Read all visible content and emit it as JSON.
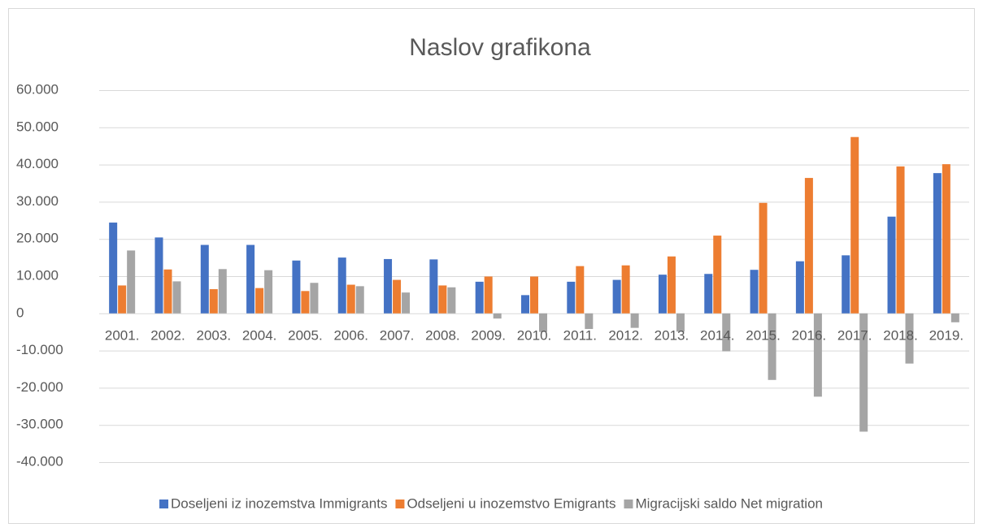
{
  "chart_data": {
    "type": "bar",
    "title": "Naslov grafikona",
    "categories": [
      "2001.",
      "2002.",
      "2003.",
      "2004.",
      "2005.",
      "2006.",
      "2007.",
      "2008.",
      "2009.",
      "2010.",
      "2011.",
      "2012.",
      "2013.",
      "2014.",
      "2015.",
      "2016.",
      "2017.",
      "2018.",
      "2019."
    ],
    "series": [
      {
        "name": "Doseljeni iz inozemstva Immigrants",
        "color": "#4472c4",
        "values": [
          24400,
          20400,
          18400,
          18400,
          14200,
          15000,
          14600,
          14500,
          8500,
          4900,
          8500,
          9000,
          10400,
          10600,
          11700,
          14000,
          15600,
          26000,
          37700
        ]
      },
      {
        "name": "Odseljeni u inozemstvo Emigrants",
        "color": "#ed7d31",
        "values": [
          7500,
          11800,
          6500,
          6800,
          6000,
          7700,
          9000,
          7500,
          9900,
          9900,
          12700,
          12900,
          15300,
          20900,
          29700,
          36400,
          47400,
          39500,
          40100
        ]
      },
      {
        "name": "Migracijski saldo Net migration",
        "color": "#a5a5a5",
        "values": [
          16900,
          8600,
          11900,
          11600,
          8200,
          7300,
          5600,
          7000,
          -1400,
          -5000,
          -4200,
          -3900,
          -4900,
          -10200,
          -17900,
          -22400,
          -31800,
          -13500,
          -2400
        ]
      }
    ],
    "ylim": [
      -40000,
      60000
    ],
    "yticks": [
      {
        "value": -40000,
        "label": "-40.000"
      },
      {
        "value": -30000,
        "label": "-30.000"
      },
      {
        "value": -20000,
        "label": "-20.000"
      },
      {
        "value": -10000,
        "label": "-10.000"
      },
      0,
      {
        "value": 10000,
        "label": "10.000"
      },
      {
        "value": 20000,
        "label": "20.000"
      },
      {
        "value": 30000,
        "label": "30.000"
      },
      {
        "value": 40000,
        "label": "40.000"
      },
      {
        "value": 50000,
        "label": "50.000"
      },
      {
        "value": 60000,
        "label": "60.000"
      }
    ],
    "grid": true,
    "legend": "bottom"
  }
}
